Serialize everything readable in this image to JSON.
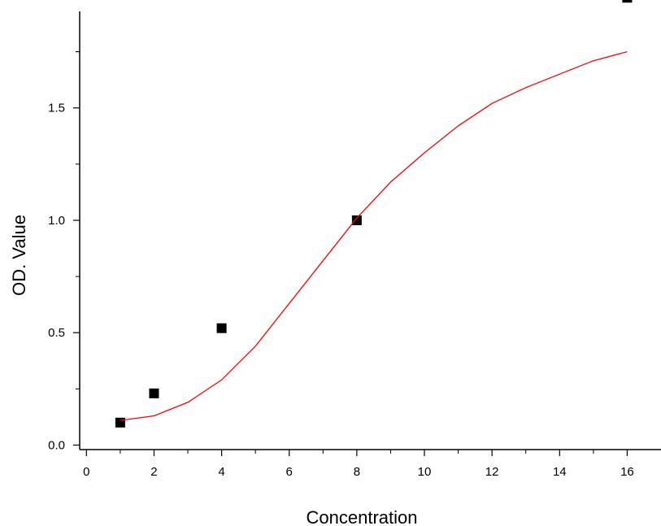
{
  "chart_data": {
    "type": "scatter",
    "xlabel": "Concentration",
    "ylabel": "OD. Value",
    "xlim": [
      -0.2,
      17
    ],
    "ylim": [
      -0.02,
      1.98
    ],
    "x_ticks": [
      0,
      2,
      4,
      6,
      8,
      10,
      12,
      14,
      16
    ],
    "x_tick_labels": [
      "0",
      "2",
      "4",
      "6",
      "8",
      "10",
      "12",
      "14",
      "16"
    ],
    "y_ticks": [
      0.0,
      0.5,
      1.0,
      1.5
    ],
    "y_tick_labels": [
      "0.0",
      "0.5",
      "1.0",
      "1.5"
    ],
    "grid": false,
    "legend": "none",
    "series": [
      {
        "type": "scatter",
        "marker": "square",
        "color": "#000000",
        "x": [
          1,
          2,
          4,
          8,
          16
        ],
        "y": [
          0.1,
          0.23,
          0.52,
          1.0,
          1.99
        ]
      },
      {
        "type": "line",
        "color": "#ff0000",
        "x": [
          1,
          2,
          3,
          4,
          5,
          6,
          7,
          8,
          9,
          10,
          11,
          12,
          13,
          14,
          15,
          16
        ],
        "y": [
          0.11,
          0.13,
          0.19,
          0.29,
          0.44,
          0.63,
          0.82,
          1.01,
          1.17,
          1.3,
          1.42,
          1.52,
          1.59,
          1.65,
          1.71,
          1.75
        ]
      }
    ]
  }
}
